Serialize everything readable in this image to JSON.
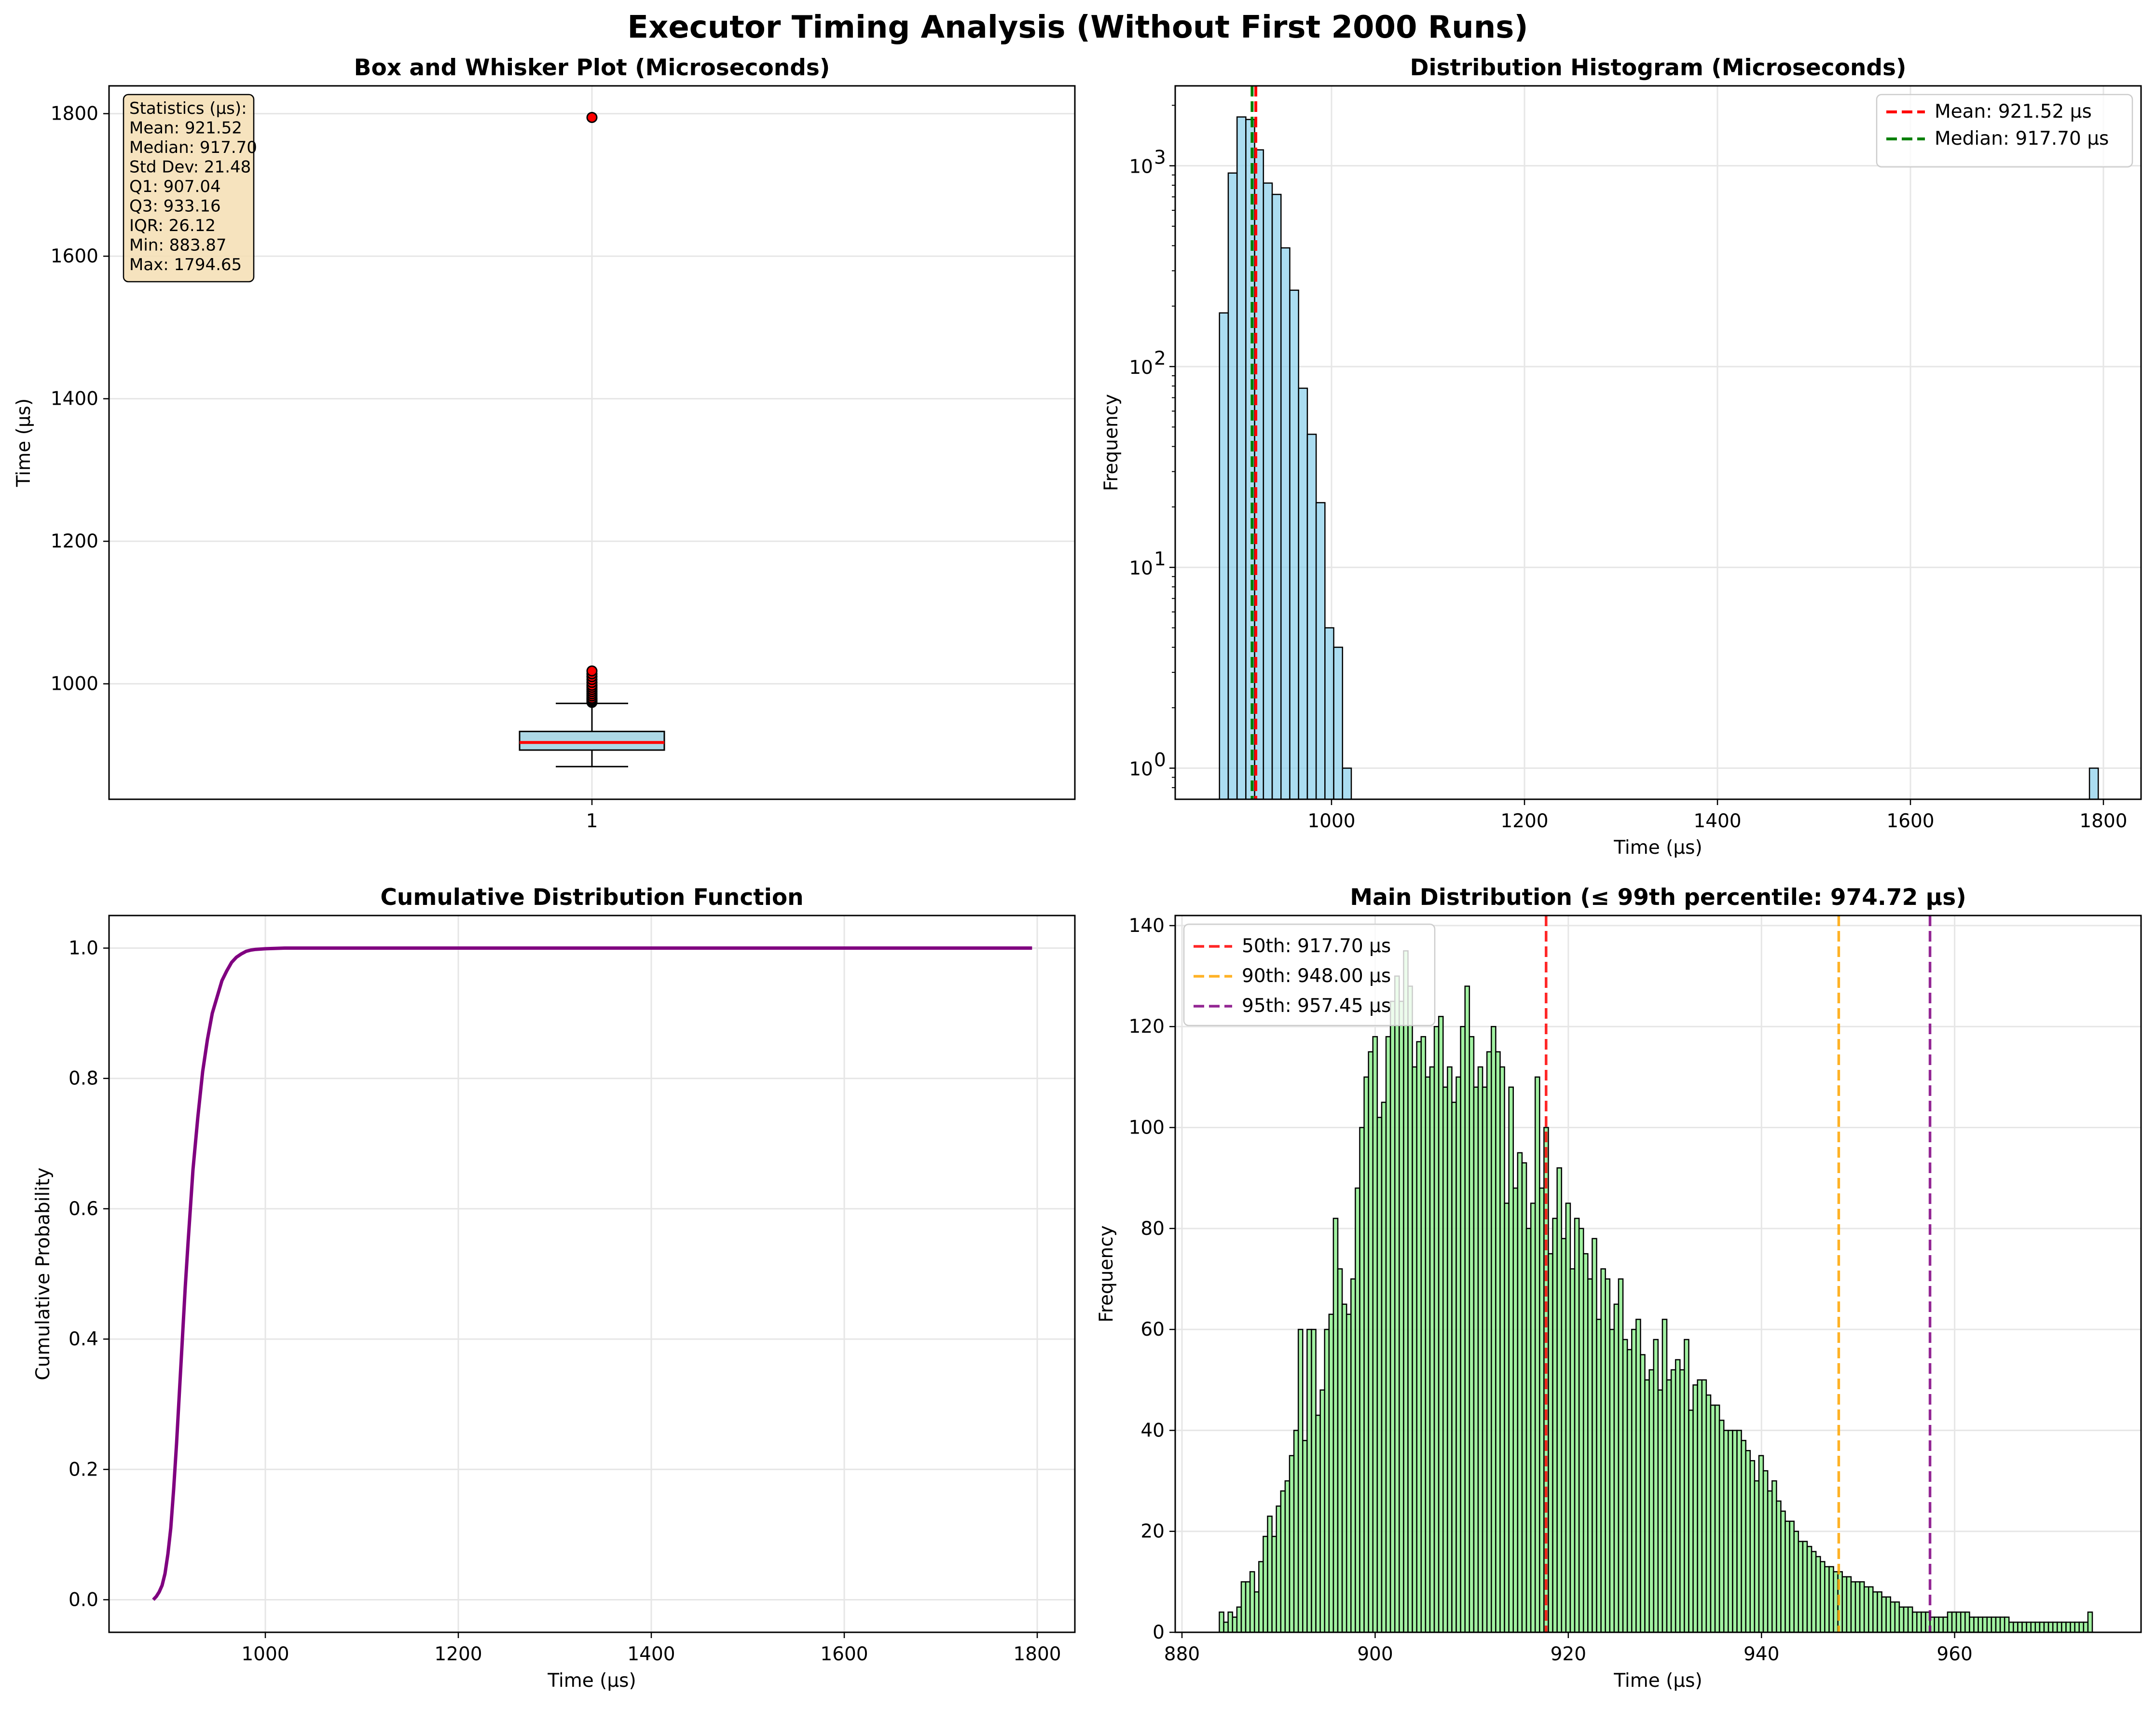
{
  "suptitle": "Executor Timing Analysis (Without First 2000 Runs)",
  "chart_data": [
    {
      "type": "box",
      "title": "Box and Whisker Plot (Microseconds)",
      "xlabel": "",
      "ylabel": "Time (µs)",
      "categories": [
        "1"
      ],
      "ylim": [
        838,
        1839
      ],
      "yticks": [
        1000,
        1200,
        1400,
        1600,
        1800
      ],
      "grid": true,
      "box": {
        "whislo": 883.87,
        "q1": 907.04,
        "med": 917.7,
        "q3": 933.16,
        "whishi": 972.5
      },
      "fliers": [
        974,
        976,
        978,
        980,
        983,
        986,
        989,
        992,
        995,
        998,
        1002,
        1006,
        1010,
        1014,
        1018,
        1794.65
      ],
      "stats_box": {
        "lines": [
          "Statistics (µs):",
          "Mean: 921.52",
          "Median: 917.70",
          "Std Dev: 21.48",
          "Q1: 907.04",
          "Q3: 933.16",
          "IQR: 26.12",
          "Min: 883.87",
          "Max: 1794.65"
        ]
      },
      "colors": {
        "box_fill": "#add8e6",
        "median": "#ff0000",
        "flier": "#ff0000"
      }
    },
    {
      "type": "bar",
      "title": "Distribution Histogram (Microseconds)",
      "xlabel": "Time (µs)",
      "ylabel": "Frequency",
      "yscale": "log",
      "xlim": [
        838,
        1839
      ],
      "xticks": [
        1000,
        1200,
        1400,
        1600,
        1800
      ],
      "yticks": [
        1,
        10,
        100,
        1000
      ],
      "yticklabels": [
        [
          "10",
          "0"
        ],
        [
          "10",
          "1"
        ],
        [
          "10",
          "2"
        ],
        [
          "10",
          "3"
        ]
      ],
      "grid": true,
      "bin_width": 9.108,
      "bins": [
        {
          "x0": 883.87,
          "count": 185
        },
        {
          "x0": 892.98,
          "count": 920
        },
        {
          "x0": 902.09,
          "count": 1750
        },
        {
          "x0": 911.2,
          "count": 1700
        },
        {
          "x0": 920.3,
          "count": 1200
        },
        {
          "x0": 929.41,
          "count": 820
        },
        {
          "x0": 938.52,
          "count": 720
        },
        {
          "x0": 947.63,
          "count": 390
        },
        {
          "x0": 956.74,
          "count": 240
        },
        {
          "x0": 965.85,
          "count": 78
        },
        {
          "x0": 974.96,
          "count": 46
        },
        {
          "x0": 984.06,
          "count": 21
        },
        {
          "x0": 993.17,
          "count": 5
        },
        {
          "x0": 1002.28,
          "count": 4
        },
        {
          "x0": 1011.39,
          "count": 1
        },
        {
          "x0": 1785.54,
          "count": 1
        }
      ],
      "vlines": [
        {
          "name": "Mean: 921.52 µs",
          "x": 921.52,
          "color": "#ff0000"
        },
        {
          "name": "Median: 917.70 µs",
          "x": 917.7,
          "color": "#008000"
        }
      ],
      "legend_position": "top-right",
      "colors": {
        "bar_fill": "#87ceeb"
      }
    },
    {
      "type": "line",
      "title": "Cumulative Distribution Function",
      "xlabel": "Time (µs)",
      "ylabel": "Cumulative Probability",
      "xlim": [
        838,
        1839
      ],
      "ylim": [
        -0.05,
        1.05
      ],
      "xticks": [
        1000,
        1200,
        1400,
        1600,
        1800
      ],
      "yticks": [
        0.0,
        0.2,
        0.4,
        0.6,
        0.8,
        1.0
      ],
      "yticklabels": [
        "0.0",
        "0.2",
        "0.4",
        "0.6",
        "0.8",
        "1.0"
      ],
      "grid": true,
      "series": [
        {
          "x": [
            883.87,
            887,
            890,
            893,
            896,
            899,
            902,
            905,
            908,
            911,
            914,
            917,
            920,
            925,
            930,
            935,
            940,
            945,
            950,
            955,
            960,
            965,
            970,
            975,
            980,
            985,
            990,
            1000,
            1020,
            1794.65
          ],
          "y": [
            0.0,
            0.005,
            0.012,
            0.022,
            0.04,
            0.07,
            0.11,
            0.17,
            0.24,
            0.32,
            0.4,
            0.48,
            0.55,
            0.66,
            0.74,
            0.81,
            0.86,
            0.9,
            0.925,
            0.95,
            0.965,
            0.978,
            0.986,
            0.991,
            0.995,
            0.997,
            0.998,
            0.999,
            1.0,
            1.0
          ],
          "color": "#800080"
        }
      ]
    },
    {
      "type": "bar",
      "title": "Main Distribution (≤ 99th percentile: 974.72 µs)",
      "xlabel": "Time (µs)",
      "ylabel": "Frequency",
      "xlim": [
        879.3,
        979.3
      ],
      "ylim": [
        0,
        142
      ],
      "xticks": [
        880,
        900,
        920,
        940,
        960
      ],
      "yticks": [
        0,
        20,
        40,
        60,
        80,
        100,
        120,
        140
      ],
      "grid": true,
      "bin_start": 883.87,
      "bin_width": 0.4542,
      "values": [
        4,
        2,
        4,
        3,
        5,
        10,
        10,
        12,
        8,
        14,
        19,
        23,
        19,
        25,
        28,
        30,
        35,
        40,
        60,
        38,
        60,
        60,
        43,
        48,
        60,
        63,
        82,
        72,
        65,
        63,
        70,
        88,
        100,
        110,
        115,
        118,
        102,
        105,
        118,
        125,
        130,
        125,
        135,
        128,
        112,
        117,
        118,
        110,
        112,
        120,
        122,
        108,
        112,
        105,
        110,
        120,
        128,
        118,
        108,
        112,
        108,
        115,
        120,
        115,
        112,
        85,
        108,
        88,
        95,
        93,
        80,
        85,
        110,
        88,
        100,
        75,
        82,
        92,
        78,
        85,
        72,
        82,
        80,
        75,
        70,
        78,
        62,
        72,
        70,
        60,
        65,
        70,
        58,
        56,
        60,
        62,
        55,
        50,
        52,
        58,
        48,
        62,
        50,
        52,
        54,
        52,
        58,
        44,
        49,
        50,
        50,
        47,
        45,
        45,
        42,
        40,
        40,
        40,
        40,
        38,
        36,
        34,
        30,
        35,
        32,
        28,
        30,
        26,
        24,
        22,
        22,
        20,
        18,
        18,
        17,
        16,
        15,
        14,
        13,
        13,
        12,
        12,
        11,
        11,
        10,
        10,
        10,
        9,
        9,
        8,
        8,
        7,
        7,
        6,
        6,
        5,
        5,
        5,
        4,
        4,
        4,
        4,
        3,
        3,
        3,
        3,
        4,
        4,
        4,
        4,
        4,
        3,
        3,
        3,
        3,
        3,
        3,
        3,
        3,
        3,
        2,
        2,
        2,
        2,
        2,
        2,
        2,
        2,
        2,
        2,
        2,
        2,
        2,
        2,
        2,
        2,
        2,
        2,
        4
      ],
      "vlines": [
        {
          "name": "50th: 917.70 µs",
          "x": 917.7,
          "color": "#ff0000"
        },
        {
          "name": "90th: 948.00 µs",
          "x": 948.0,
          "color": "#ffa500"
        },
        {
          "name": "95th: 957.45 µs",
          "x": 957.45,
          "color": "#800080"
        }
      ],
      "legend_position": "top-left",
      "colors": {
        "bar_fill": "#90ee90"
      }
    }
  ]
}
